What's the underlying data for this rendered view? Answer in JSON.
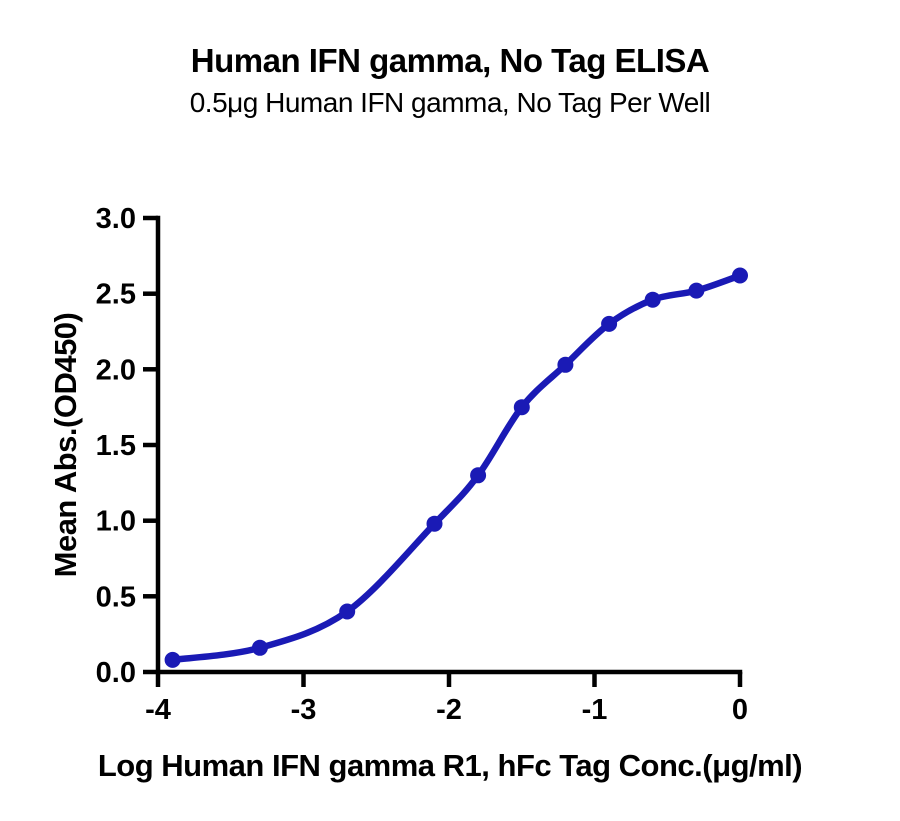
{
  "figure": {
    "background": "#ffffff"
  },
  "chart_data": {
    "type": "line",
    "title": "Human IFN gamma, No Tag ELISA",
    "subtitle": "0.5μg Human IFN gamma, No Tag Per Well",
    "xlabel": "Log Human IFN gamma R1, hFc Tag Conc.(μg/ml)",
    "ylabel": "Mean Abs.(OD450)",
    "x": [
      -3.9,
      -3.3,
      -2.7,
      -2.1,
      -1.8,
      -1.5,
      -1.2,
      -0.9,
      -0.6,
      -0.3,
      0.0
    ],
    "y": [
      0.08,
      0.16,
      0.4,
      0.98,
      1.3,
      1.75,
      2.03,
      2.3,
      2.46,
      2.52,
      2.62
    ],
    "xlim": [
      -4,
      0
    ],
    "ylim": [
      0,
      3
    ],
    "xticks": [
      -4,
      -3,
      -2,
      -1,
      0
    ],
    "xtick_labels": [
      "-4",
      "-3",
      "-2",
      "-1",
      "0"
    ],
    "yticks": [
      0,
      0.5,
      1,
      1.5,
      2,
      2.5,
      3
    ],
    "ytick_labels": [
      "0.0",
      "0.5",
      "1.0",
      "1.5",
      "2.0",
      "2.5",
      "3.0"
    ],
    "series_color": "#1a1ab5",
    "axis_color": "#000000",
    "grid": false,
    "legend_position": "none",
    "marker": "circle"
  }
}
